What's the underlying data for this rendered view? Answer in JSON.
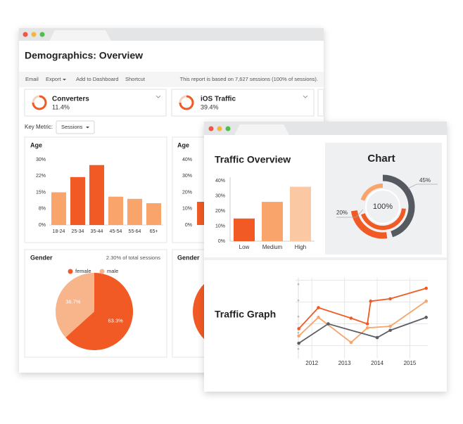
{
  "back_window": {
    "title": "Demographics: Overview",
    "toolbar": [
      "Email",
      "Export",
      "Add to Dashboard",
      "Shortcut"
    ],
    "report_note": "This report is based on 7,627 sessions (100% of sessions).",
    "cards": [
      {
        "label": "Converters",
        "value": "11.4%"
      },
      {
        "label": "iOS Traffic",
        "value": "39.4%"
      }
    ],
    "key_metric": {
      "label": "Key Metric:",
      "selected": "Sessions"
    },
    "age_chart": {
      "type": "bar",
      "title": "Age",
      "categories": [
        "18-24",
        "25-34",
        "35-44",
        "45-54",
        "55-64",
        "65+"
      ],
      "values": [
        15,
        22,
        27.5,
        13,
        12,
        10
      ],
      "colors": [
        "#f8a46b",
        "#f15a24",
        "#f15a24",
        "#f8a46b",
        "#f8a46b",
        "#f8a46b"
      ],
      "ylim": [
        0,
        30
      ],
      "yticks": [
        {
          "value": 0,
          "label": "0%"
        },
        {
          "value": 7.5,
          "label": "8%"
        },
        {
          "value": 15,
          "label": "15%"
        },
        {
          "value": 22.5,
          "label": "22%"
        },
        {
          "value": 30,
          "label": "30%"
        }
      ]
    },
    "age_chart_2": {
      "title": "Age",
      "ylim": [
        0,
        40
      ],
      "yticks": [
        {
          "value": 0,
          "label": "0%"
        },
        {
          "value": 10,
          "label": "10%"
        },
        {
          "value": 20,
          "label": "20%"
        },
        {
          "value": 30,
          "label": "30%"
        },
        {
          "value": 40,
          "label": "40%"
        }
      ]
    },
    "gender_chart": {
      "type": "pie",
      "title": "Gender",
      "subtitle": "2.30% of total sessions",
      "categories": [
        "female",
        "male"
      ],
      "values": [
        63.3,
        36.7
      ],
      "value_labels": [
        "63.3%",
        "36.7%"
      ],
      "colors": [
        "#f15a24",
        "#f8b48a"
      ]
    },
    "gender_chart_2": {
      "title": "Gender"
    }
  },
  "front_window": {
    "traffic_overview": {
      "type": "bar",
      "title": "Traffic Overview",
      "categories": [
        "Low",
        "Medium",
        "High"
      ],
      "values": [
        15,
        26,
        36
      ],
      "colors": [
        "#f15a24",
        "#f8a46b",
        "#fbc8a4"
      ],
      "ylim": [
        0,
        40
      ],
      "yticks": [
        {
          "value": 0,
          "label": "0%"
        },
        {
          "value": 10,
          "label": "10%"
        },
        {
          "value": 20,
          "label": "20%"
        },
        {
          "value": 30,
          "label": "30%"
        },
        {
          "value": 40,
          "label": "40%"
        }
      ]
    },
    "donut": {
      "type": "donut",
      "title": "Chart",
      "center_label": "100%",
      "values": [
        45,
        20
      ],
      "value_labels": [
        "45%",
        "20%"
      ],
      "colors": [
        "#555a61",
        "#f8a46b"
      ]
    },
    "traffic_graph": {
      "type": "line",
      "title": "Traffic Graph",
      "xlim": [
        2011.5,
        2015.55
      ],
      "xticks": [
        2012,
        2013,
        2014,
        2015
      ],
      "ylim": [
        0,
        100
      ],
      "series": [
        {
          "color": "#f15a24",
          "x": [
            2011.6,
            2012.2,
            2013.2,
            2013.7,
            2013.8,
            2014.4,
            2015.5
          ],
          "values": [
            37,
            63,
            50,
            43,
            71,
            74,
            87
          ]
        },
        {
          "color": "#f8a46b",
          "x": [
            2011.6,
            2012.2,
            2013.2,
            2013.7,
            2014.4,
            2015.5
          ],
          "values": [
            28,
            51,
            20,
            38,
            40,
            71
          ]
        },
        {
          "color": "#5a5f66",
          "x": [
            2011.6,
            2012.5,
            2014.0,
            2014.4,
            2015.5
          ],
          "values": [
            19,
            43,
            26,
            35,
            51
          ]
        }
      ]
    }
  }
}
